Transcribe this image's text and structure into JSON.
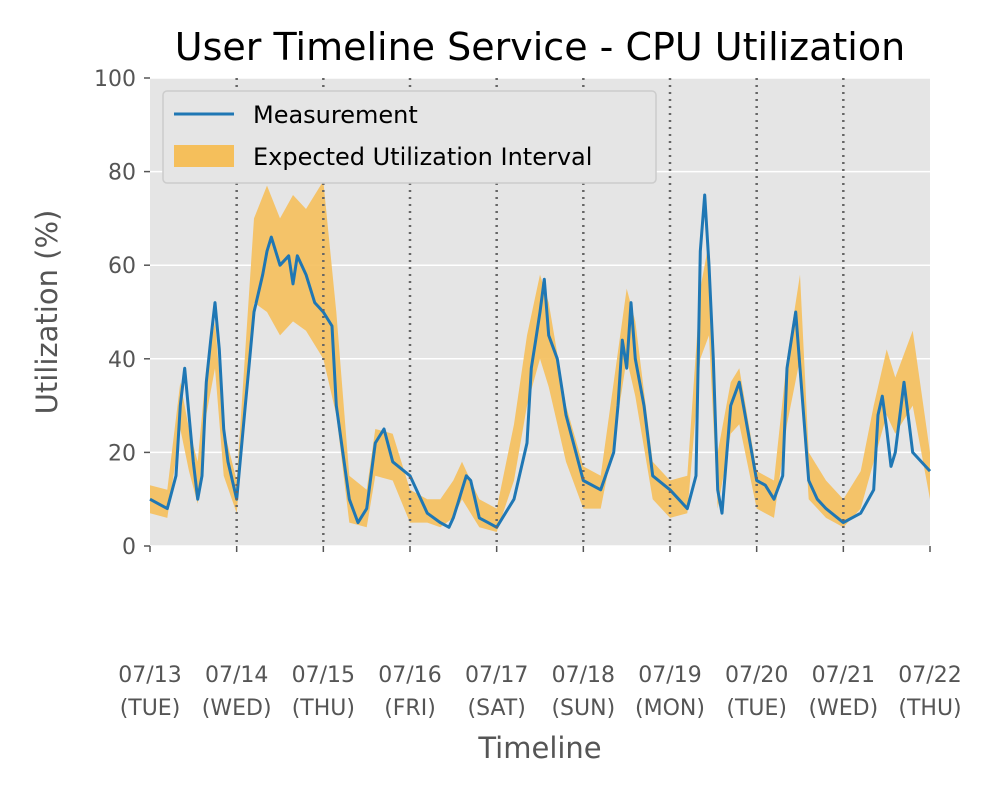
{
  "chart_data": {
    "type": "line",
    "title": "User Timeline Service - CPU Utilization",
    "xlabel": "Timeline",
    "ylabel": "Utilization (%)",
    "ylim": [
      0,
      100
    ],
    "yticks": [
      "0",
      "20",
      "40",
      "60",
      "80",
      "100"
    ],
    "xlim_days": [
      0,
      9
    ],
    "xticks": [
      {
        "date": "07/13",
        "day": "(TUE)"
      },
      {
        "date": "07/14",
        "day": "(WED)"
      },
      {
        "date": "07/15",
        "day": "(THU)"
      },
      {
        "date": "07/16",
        "day": "(FRI)"
      },
      {
        "date": "07/17",
        "day": "(SAT)"
      },
      {
        "date": "07/18",
        "day": "(SUN)"
      },
      {
        "date": "07/19",
        "day": "(MON)"
      },
      {
        "date": "07/20",
        "day": "(TUE)"
      },
      {
        "date": "07/21",
        "day": "(WED)"
      },
      {
        "date": "07/22",
        "day": "(THU)"
      }
    ],
    "grid": true,
    "legend_position": "top-left",
    "series": [
      {
        "name": "Measurement",
        "kind": "line",
        "color": "#1f77b4",
        "x": [
          0,
          0.1,
          0.2,
          0.3,
          0.35,
          0.4,
          0.45,
          0.5,
          0.55,
          0.6,
          0.65,
          0.7,
          0.75,
          0.8,
          0.85,
          0.9,
          1.0,
          1.1,
          1.15,
          1.2,
          1.3,
          1.35,
          1.4,
          1.5,
          1.6,
          1.65,
          1.7,
          1.8,
          1.9,
          2.0,
          2.1,
          2.15,
          2.3,
          2.4,
          2.5,
          2.6,
          2.7,
          2.8,
          3.0,
          3.2,
          3.35,
          3.45,
          3.5,
          3.55,
          3.6,
          3.65,
          3.7,
          3.8,
          3.9,
          4.0,
          4.2,
          4.35,
          4.4,
          4.45,
          4.5,
          4.55,
          4.6,
          4.7,
          4.8,
          5.0,
          5.2,
          5.35,
          5.4,
          5.45,
          5.5,
          5.55,
          5.6,
          5.7,
          5.8,
          6.0,
          6.1,
          6.2,
          6.3,
          6.35,
          6.4,
          6.45,
          6.5,
          6.55,
          6.6,
          6.7,
          6.8,
          7.0,
          7.1,
          7.2,
          7.3,
          7.35,
          7.4,
          7.45,
          7.5,
          7.6,
          7.7,
          7.8,
          8.0,
          8.2,
          8.35,
          8.4,
          8.45,
          8.5,
          8.55,
          8.6,
          8.7,
          8.8,
          9.0
        ],
        "y": [
          10,
          9,
          8,
          15,
          30,
          38,
          28,
          18,
          10,
          15,
          35,
          44,
          52,
          42,
          25,
          18,
          10,
          30,
          40,
          50,
          58,
          63,
          66,
          60,
          62,
          56,
          62,
          58,
          52,
          50,
          47,
          30,
          10,
          5,
          8,
          22,
          25,
          18,
          15,
          7,
          5,
          4,
          6,
          9,
          12,
          15,
          14,
          6,
          5,
          4,
          10,
          22,
          38,
          44,
          50,
          57,
          45,
          40,
          28,
          14,
          12,
          20,
          30,
          44,
          38,
          52,
          40,
          30,
          15,
          12,
          10,
          8,
          15,
          63,
          75,
          60,
          40,
          12,
          7,
          30,
          35,
          14,
          13,
          10,
          15,
          38,
          44,
          50,
          38,
          14,
          10,
          8,
          5,
          7,
          12,
          28,
          32,
          25,
          17,
          20,
          35,
          20,
          16
        ]
      },
      {
        "name": "Expected Utilization Interval",
        "kind": "band",
        "color": "#f5bf5b",
        "x": [
          0,
          0.2,
          0.35,
          0.45,
          0.55,
          0.65,
          0.75,
          0.85,
          1.0,
          1.2,
          1.35,
          1.5,
          1.65,
          1.8,
          2.0,
          2.15,
          2.3,
          2.5,
          2.6,
          2.8,
          3.0,
          3.2,
          3.35,
          3.5,
          3.6,
          3.8,
          4.0,
          4.2,
          4.35,
          4.5,
          4.6,
          4.8,
          5.0,
          5.2,
          5.35,
          5.5,
          5.6,
          5.8,
          6.0,
          6.2,
          6.35,
          6.45,
          6.55,
          6.7,
          6.8,
          7.0,
          7.2,
          7.35,
          7.5,
          7.6,
          7.8,
          8.0,
          8.2,
          8.35,
          8.5,
          8.6,
          8.8,
          9.0
        ],
        "upper": [
          13,
          12,
          35,
          25,
          18,
          38,
          48,
          25,
          14,
          70,
          77,
          70,
          75,
          72,
          78,
          50,
          15,
          12,
          25,
          24,
          12,
          10,
          10,
          14,
          18,
          10,
          8,
          26,
          45,
          58,
          52,
          30,
          17,
          15,
          35,
          55,
          48,
          18,
          14,
          15,
          55,
          65,
          20,
          35,
          38,
          16,
          14,
          40,
          58,
          20,
          14,
          10,
          16,
          30,
          42,
          36,
          46,
          20
        ],
        "lower": [
          7,
          6,
          25,
          16,
          9,
          28,
          38,
          15,
          7,
          52,
          50,
          45,
          48,
          46,
          40,
          28,
          5,
          4,
          15,
          14,
          5,
          5,
          4,
          6,
          10,
          4,
          3,
          14,
          30,
          40,
          34,
          18,
          8,
          8,
          22,
          40,
          32,
          10,
          6,
          7,
          40,
          45,
          8,
          24,
          26,
          8,
          6,
          26,
          40,
          10,
          6,
          4,
          8,
          18,
          28,
          24,
          30,
          10
        ]
      }
    ]
  }
}
